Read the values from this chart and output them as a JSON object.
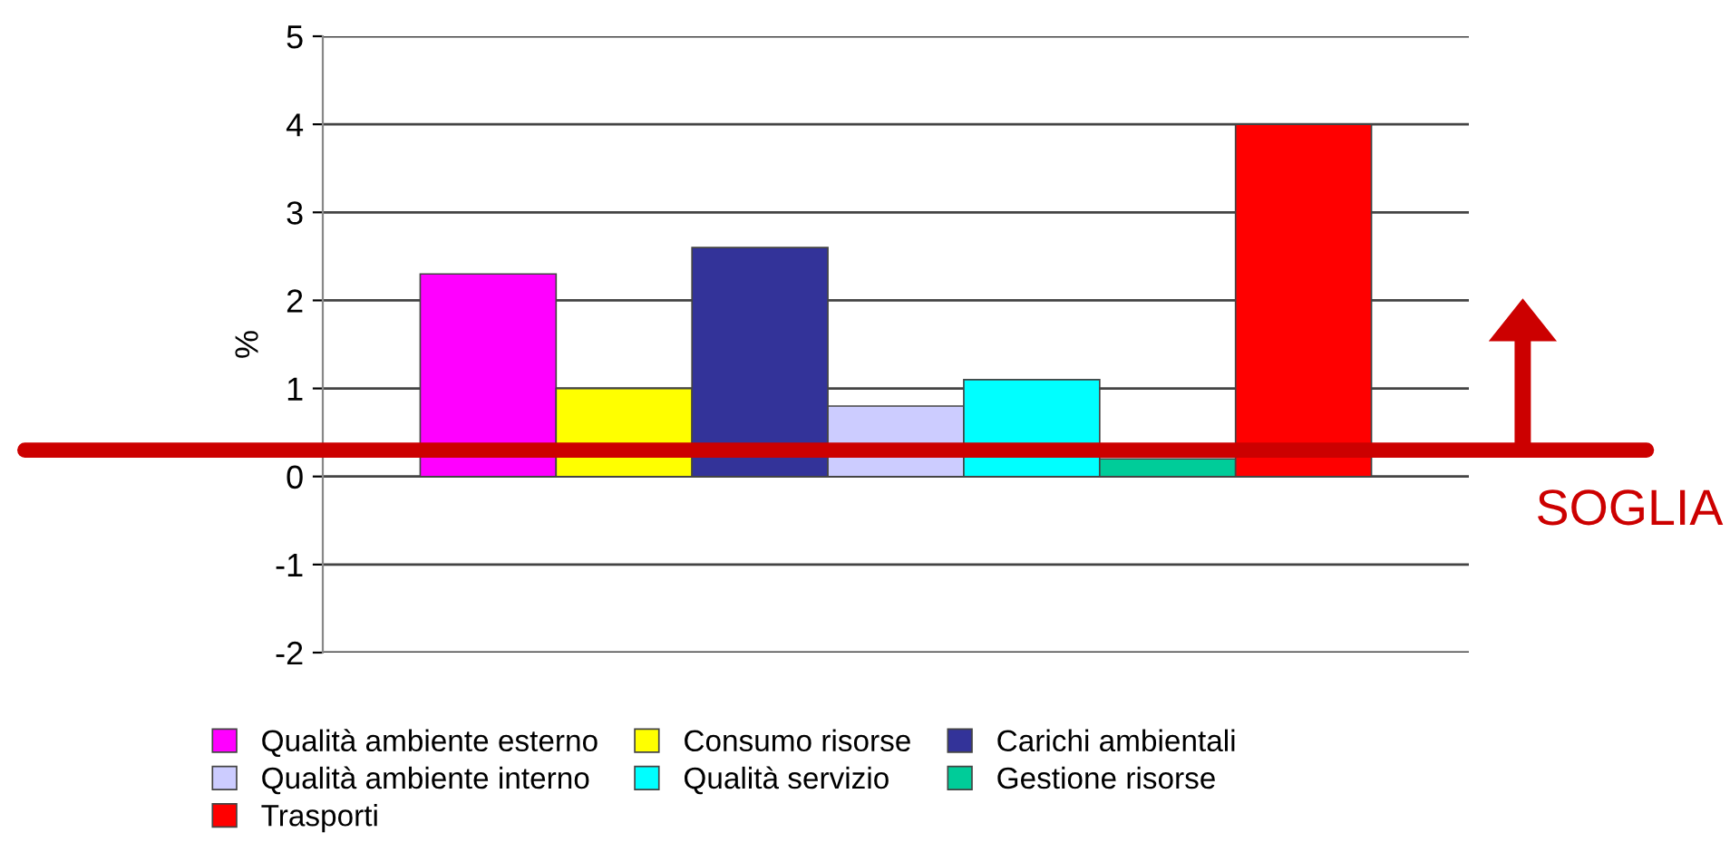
{
  "chart_data": {
    "type": "bar",
    "categories": [
      null
    ],
    "ylabel": "%",
    "ylim": [
      -2,
      5
    ],
    "yticks": [
      -2,
      -1,
      0,
      1,
      2,
      3,
      4,
      5
    ],
    "grid": "y",
    "legend": "bottom",
    "tick_labels": "y",
    "series": [
      {
        "name": "Qualità ambiente esterno",
        "color": "#ff00ff",
        "values": [
          2.3
        ]
      },
      {
        "name": "Consumo risorse",
        "color": "#ffff00",
        "values": [
          1.0
        ]
      },
      {
        "name": "Carichi ambientali",
        "color": "#333399",
        "values": [
          2.6
        ]
      },
      {
        "name": "Qualità ambiente interno",
        "color": "#ccccff",
        "values": [
          0.8
        ]
      },
      {
        "name": "Qualità servizio",
        "color": "#00ffff",
        "values": [
          1.1
        ]
      },
      {
        "name": "Gestione risorse",
        "color": "#00cc99",
        "values": [
          0.2
        ]
      },
      {
        "name": "Trasporti",
        "color": "#ff0000",
        "values": [
          4.0
        ]
      }
    ],
    "ref_lines": [
      {
        "axis": "y",
        "value": 0.3,
        "label": "SOGLIA",
        "color": "#cc0000"
      }
    ]
  }
}
